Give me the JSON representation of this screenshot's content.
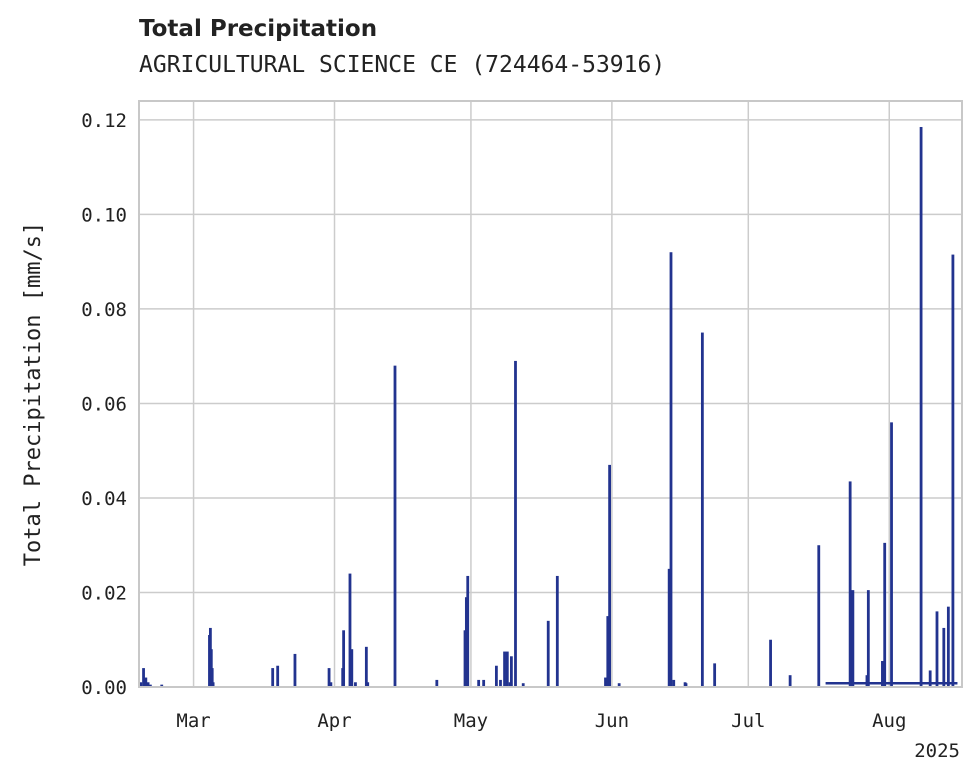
{
  "chart_data": {
    "type": "bar",
    "title": "Total Precipitation",
    "subtitle": "AGRICULTURAL SCIENCE CE (724464-53916)",
    "xlabel": "",
    "ylabel": "Total Precipitation [mm/s]",
    "x_tick_labels": [
      "Mar",
      "Apr",
      "May",
      "Jun",
      "Jul",
      "Aug"
    ],
    "x_tick_days": [
      0,
      31,
      61,
      92,
      122,
      153
    ],
    "x_offset_label": "2025",
    "xlim_days": [
      -12,
      169
    ],
    "ylim": [
      0,
      0.124
    ],
    "y_ticks": [
      0.0,
      0.02,
      0.04,
      0.06,
      0.08,
      0.1,
      0.12
    ],
    "y_tick_labels": [
      "0.00",
      "0.02",
      "0.04",
      "0.06",
      "0.08",
      "0.10",
      "0.12"
    ],
    "grid": true,
    "series_color": "#22338f",
    "x_days": [
      -11.6,
      -11.0,
      -10.5,
      -10.0,
      -9.5,
      -7.0,
      3.5,
      3.7,
      3.9,
      4.1,
      4.3,
      17.4,
      18.5,
      22.3,
      29.8,
      30.2,
      32.8,
      33.0,
      34.4,
      34.8,
      35.6,
      38.0,
      38.3,
      44.3,
      53.5,
      59.7,
      60.0,
      60.3,
      62.7,
      63.8,
      66.6,
      67.5,
      68.4,
      69.0,
      69.6,
      69.9,
      70.8,
      72.5,
      78.0,
      80.0,
      90.6,
      90.8,
      91.1,
      91.5,
      93.6,
      104.6,
      105.0,
      105.6,
      108.1,
      108.3,
      111.9,
      114.6,
      126.9,
      131.2,
      137.5,
      144.4,
      145.0,
      148.1,
      148.4,
      151.5,
      152.0,
      153.5,
      160.0,
      162.0,
      163.5,
      165.0,
      166.0,
      167.0
    ],
    "values": [
      0.001,
      0.004,
      0.002,
      0.001,
      0.0005,
      0.0005,
      0.011,
      0.0125,
      0.008,
      0.004,
      0.001,
      0.004,
      0.0045,
      0.007,
      0.004,
      0.001,
      0.004,
      0.012,
      0.024,
      0.008,
      0.001,
      0.0085,
      0.001,
      0.068,
      0.0015,
      0.012,
      0.019,
      0.0235,
      0.0015,
      0.0015,
      0.0045,
      0.0015,
      0.0075,
      0.0075,
      0.001,
      0.0065,
      0.069,
      0.0008,
      0.014,
      0.0235,
      0.002,
      0.0015,
      0.015,
      0.047,
      0.0008,
      0.025,
      0.092,
      0.0015,
      0.001,
      0.0008,
      0.075,
      0.005,
      0.01,
      0.0025,
      0.03,
      0.0435,
      0.0205,
      0.0025,
      0.0205,
      0.0055,
      0.0305,
      0.056,
      0.1185,
      0.0035,
      0.016,
      0.0125,
      0.017,
      0.0915
    ],
    "baseline_segments": [
      [
        139,
        155
      ],
      [
        154,
        168
      ]
    ]
  }
}
